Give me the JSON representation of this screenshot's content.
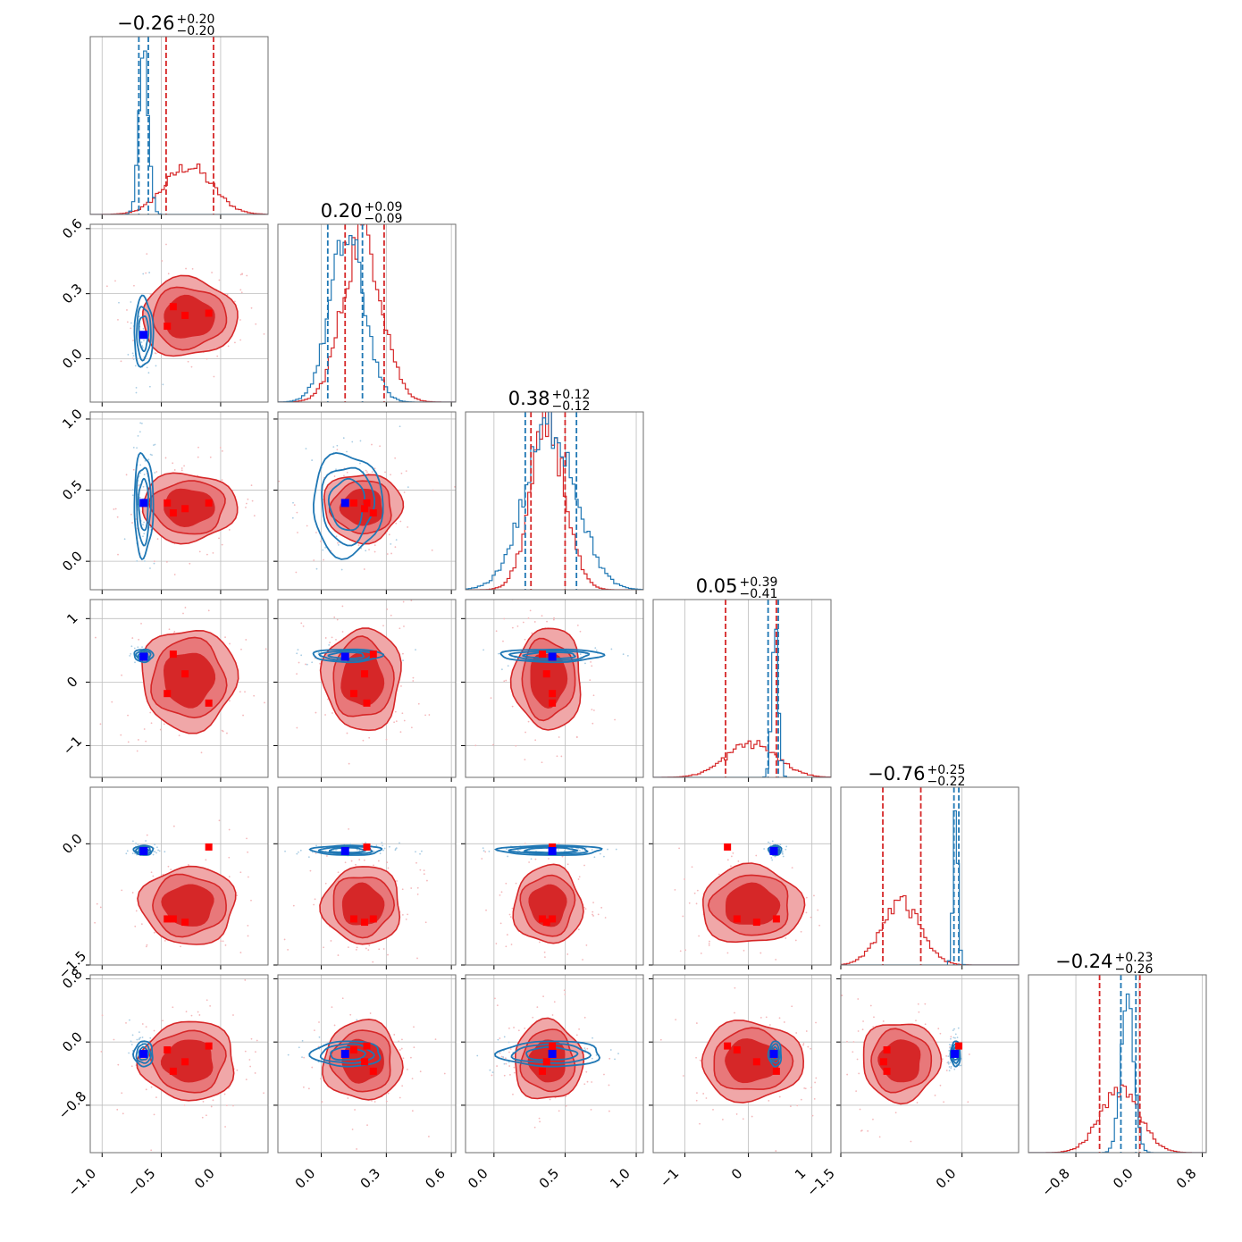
{
  "colors": {
    "blue": "#1f77b4",
    "red": "#d62728",
    "red_fill_outer": "#f0a7a8",
    "red_fill_inner": "#d62728",
    "blue_marker": "#0000ff",
    "red_marker": "#ff0000"
  },
  "chart_data": {
    "type": "corner",
    "n_params": 6,
    "grid": true,
    "diagonal_titles": [
      {
        "value": "−0.26",
        "plus": "+0.20",
        "minus": "−0.20"
      },
      {
        "value": "0.20",
        "plus": "+0.09",
        "minus": "−0.09"
      },
      {
        "value": "0.38",
        "plus": "+0.12",
        "minus": "−0.12"
      },
      {
        "value": "0.05",
        "plus": "+0.39",
        "minus": "−0.41"
      },
      {
        "value": "−0.76",
        "plus": "+0.25",
        "minus": "−0.22"
      },
      {
        "value": "−0.24",
        "plus": "+0.23",
        "minus": "−0.26"
      }
    ],
    "params": [
      {
        "range": [
          -1.1,
          0.4
        ],
        "ticks": [
          -1.0,
          -0.5,
          0.0
        ],
        "tick_labels": [
          "−1.0",
          "−0.5",
          "0.0"
        ]
      },
      {
        "range": [
          -0.2,
          0.62
        ],
        "ticks": [
          0.0,
          0.3,
          0.6
        ],
        "tick_labels": [
          "0.0",
          "0.3",
          "0.6"
        ]
      },
      {
        "range": [
          -0.2,
          1.05
        ],
        "ticks": [
          0.0,
          0.5,
          1.0
        ],
        "tick_labels": [
          "0.0",
          "0.5",
          "1.0"
        ]
      },
      {
        "range": [
          -1.5,
          1.3
        ],
        "ticks": [
          -1,
          0,
          1
        ],
        "tick_labels": [
          "−1",
          "0",
          "1"
        ]
      },
      {
        "range": [
          -1.5,
          0.7
        ],
        "ticks": [
          -1.5,
          0.0
        ],
        "tick_labels": [
          "−1.5",
          "0.0"
        ]
      },
      {
        "range": [
          -1.4,
          0.85
        ],
        "ticks": [
          -0.8,
          0.0,
          0.8
        ],
        "tick_labels": [
          "−0.8",
          "0.0",
          "0.8"
        ]
      }
    ],
    "truth_blue": [
      -0.65,
      0.11,
      0.41,
      0.4,
      -0.09,
      -0.15
    ],
    "truth_red": [
      [
        -0.45,
        -0.4,
        -0.3,
        -0.1
      ],
      [
        0.15,
        0.24,
        0.2,
        0.21
      ],
      [
        0.41,
        0.34,
        0.37,
        0.41
      ],
      [
        -0.18,
        0.44,
        0.13,
        -0.33
      ],
      [
        -0.93,
        -0.93,
        -0.97,
        -0.04
      ],
      [
        -0.1,
        -0.37,
        -0.25,
        -0.05
      ]
    ],
    "red_centers": [
      -0.27,
      0.19,
      0.38,
      0.05,
      -0.76,
      -0.24
    ],
    "red_sigmas": [
      0.2,
      0.09,
      0.12,
      0.4,
      0.24,
      0.25
    ],
    "blue_centers": [
      -0.65,
      0.12,
      0.4,
      0.42,
      -0.08,
      -0.15
    ],
    "blue_sigmas": [
      0.04,
      0.08,
      0.18,
      0.05,
      0.03,
      0.08
    ],
    "diag_quantiles_red": [
      [
        -0.46,
        -0.06
      ],
      [
        0.11,
        0.29
      ],
      [
        0.26,
        0.5
      ],
      [
        -0.36,
        0.44
      ],
      [
        -0.98,
        -0.51
      ],
      [
        -0.5,
        0.01
      ]
    ],
    "diag_quantiles_blue": [
      [
        -0.69,
        -0.61
      ],
      [
        0.03,
        0.19
      ],
      [
        0.22,
        0.58
      ],
      [
        0.31,
        0.47
      ],
      [
        -0.1,
        -0.04
      ],
      [
        -0.23,
        -0.04
      ]
    ]
  }
}
